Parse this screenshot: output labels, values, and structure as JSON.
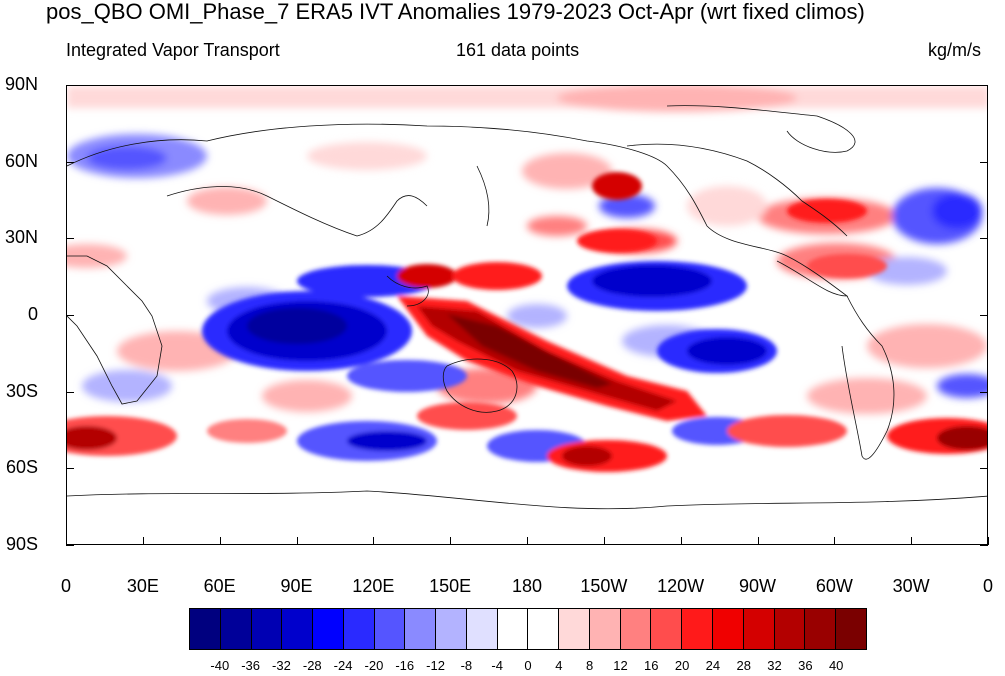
{
  "title": "pos_QBO OMI_Phase_7 ERA5 IVT Anomalies 1979-2023 Oct-Apr (wrt fixed climos)",
  "subtitle_left": "Integrated Vapor Transport",
  "subtitle_center": "161 data points",
  "subtitle_right": "kg/m/s",
  "y_axis_labels": [
    "90N",
    "60N",
    "30N",
    "0",
    "30S",
    "60S",
    "90S"
  ],
  "x_axis_labels": [
    "0",
    "30E",
    "60E",
    "90E",
    "120E",
    "150E",
    "180",
    "150W",
    "120W",
    "90W",
    "60W",
    "30W",
    "0"
  ],
  "colorbar": {
    "labels": [
      "-40",
      "-36",
      "-32",
      "-28",
      "-24",
      "-20",
      "-16",
      "-12",
      "-8",
      "-4",
      "0",
      "4",
      "8",
      "12",
      "16",
      "20",
      "24",
      "28",
      "32",
      "36",
      "40"
    ],
    "colors": [
      "#00007f",
      "#000099",
      "#0000b3",
      "#0000cc",
      "#0000ff",
      "#2a2aff",
      "#5555ff",
      "#8a8aff",
      "#b3b3ff",
      "#e0e0ff",
      "#ffffff",
      "#ffffff",
      "#ffd9d9",
      "#ffb3b3",
      "#ff8080",
      "#ff4d4d",
      "#ff1a1a",
      "#f00000",
      "#d40000",
      "#b30000",
      "#990000",
      "#7a0000"
    ]
  },
  "color_meaning": {
    "negative": "#0000cc",
    "positive": "#cc0000",
    "neutral": "#ffffff"
  }
}
